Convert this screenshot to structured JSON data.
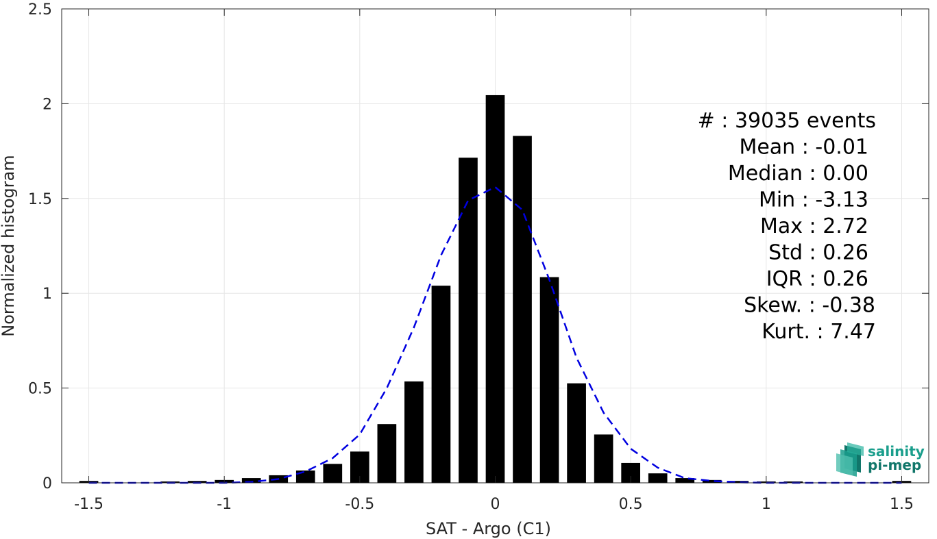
{
  "chart_data": {
    "type": "bar",
    "xlabel": "SAT - Argo (C1)",
    "ylabel": "Normalized histogram",
    "xlim": [
      -1.6,
      1.6
    ],
    "ylim": [
      0,
      2.5
    ],
    "xticks": [
      -1.5,
      -1,
      -0.5,
      0,
      0.5,
      1,
      1.5
    ],
    "xtick_labels": [
      "-1.5",
      "-1",
      "-0.5",
      "0",
      "0.5",
      "1",
      "1.5"
    ],
    "yticks": [
      0,
      0.5,
      1,
      1.5,
      2,
      2.5
    ],
    "ytick_labels": [
      "0",
      "0.5",
      "1",
      "1.5",
      "2",
      "2.5"
    ],
    "grid": true,
    "bar_width": 0.07,
    "bars": [
      {
        "x": -1.5,
        "y": 0.01
      },
      {
        "x": -1.4,
        "y": 0.0
      },
      {
        "x": -1.3,
        "y": 0.0
      },
      {
        "x": -1.2,
        "y": 0.005
      },
      {
        "x": -1.1,
        "y": 0.01
      },
      {
        "x": -1.0,
        "y": 0.015
      },
      {
        "x": -0.9,
        "y": 0.025
      },
      {
        "x": -0.8,
        "y": 0.04
      },
      {
        "x": -0.7,
        "y": 0.065
      },
      {
        "x": -0.6,
        "y": 0.1
      },
      {
        "x": -0.5,
        "y": 0.165
      },
      {
        "x": -0.4,
        "y": 0.31
      },
      {
        "x": -0.3,
        "y": 0.535
      },
      {
        "x": -0.2,
        "y": 1.04
      },
      {
        "x": -0.1,
        "y": 1.715
      },
      {
        "x": 0.0,
        "y": 2.045
      },
      {
        "x": 0.1,
        "y": 1.83
      },
      {
        "x": 0.2,
        "y": 1.085
      },
      {
        "x": 0.3,
        "y": 0.525
      },
      {
        "x": 0.4,
        "y": 0.255
      },
      {
        "x": 0.5,
        "y": 0.105
      },
      {
        "x": 0.6,
        "y": 0.05
      },
      {
        "x": 0.7,
        "y": 0.025
      },
      {
        "x": 0.8,
        "y": 0.015
      },
      {
        "x": 0.9,
        "y": 0.01
      },
      {
        "x": 1.0,
        "y": 0.005
      },
      {
        "x": 1.1,
        "y": 0.003
      },
      {
        "x": 1.2,
        "y": 0.0
      },
      {
        "x": 1.3,
        "y": 0.0
      },
      {
        "x": 1.4,
        "y": 0.0
      },
      {
        "x": 1.5,
        "y": 0.01
      }
    ],
    "fit_curve": {
      "style": "dashed",
      "color": "#0000e0",
      "points": [
        [
          -1.5,
          0.0
        ],
        [
          -1.4,
          0.0
        ],
        [
          -1.3,
          0.0
        ],
        [
          -1.2,
          0.0
        ],
        [
          -1.1,
          0.0
        ],
        [
          -1.0,
          0.0
        ],
        [
          -0.9,
          0.005
        ],
        [
          -0.8,
          0.02
        ],
        [
          -0.7,
          0.06
        ],
        [
          -0.6,
          0.13
        ],
        [
          -0.5,
          0.255
        ],
        [
          -0.4,
          0.5
        ],
        [
          -0.3,
          0.82
        ],
        [
          -0.2,
          1.2
        ],
        [
          -0.1,
          1.49
        ],
        [
          0.0,
          1.56
        ],
        [
          0.1,
          1.44
        ],
        [
          0.2,
          1.07
        ],
        [
          0.3,
          0.66
        ],
        [
          0.4,
          0.37
        ],
        [
          0.5,
          0.18
        ],
        [
          0.6,
          0.08
        ],
        [
          0.7,
          0.025
        ],
        [
          0.8,
          0.01
        ],
        [
          0.9,
          0.003
        ],
        [
          1.0,
          0.0
        ],
        [
          1.1,
          0.0
        ],
        [
          1.2,
          0.0
        ],
        [
          1.3,
          0.0
        ],
        [
          1.4,
          0.0
        ],
        [
          1.5,
          0.0
        ]
      ]
    },
    "annotations": [
      "#  : 39035 events",
      "Mean : -0.01",
      "Median : 0.00",
      "Min : -3.13",
      "Max : 2.72",
      "Std : 0.26",
      "IQR : 0.26",
      "Skew. : -0.38",
      "Kurt. : 7.47"
    ]
  },
  "logo": {
    "line1": "salinity",
    "line2": "pi-mep"
  },
  "colors": {
    "bar": "#000000",
    "grid": "#e6e6e6",
    "axis": "#262626",
    "fit": "#0000e0",
    "logo_teal": "#1a9e8c",
    "logo_dark": "#11766a"
  }
}
